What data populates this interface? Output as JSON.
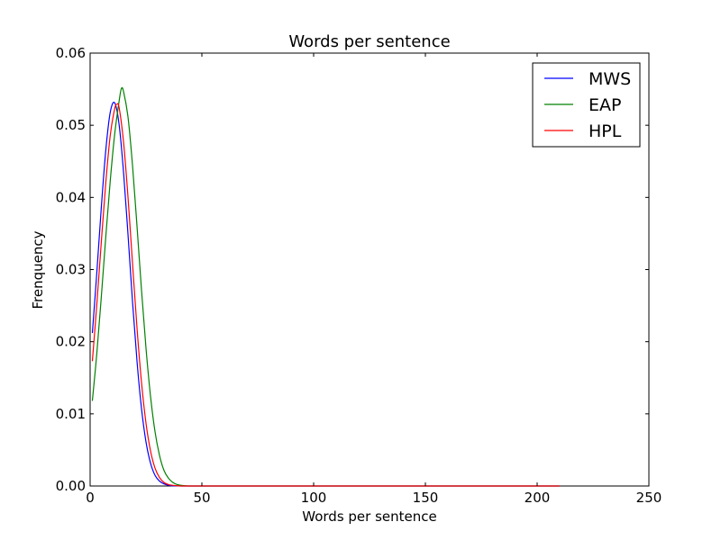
{
  "chart_data": {
    "type": "line",
    "title": "Words per sentence",
    "xlabel": "Words per sentence",
    "ylabel": "Frenquency",
    "xlim": [
      0,
      250
    ],
    "ylim": [
      0,
      0.06
    ],
    "xticks": [
      0,
      50,
      100,
      150,
      200,
      250
    ],
    "xtick_labels": [
      "0",
      "50",
      "100",
      "150",
      "200",
      "250"
    ],
    "yticks": [
      0,
      0.01,
      0.02,
      0.03,
      0.04,
      0.05,
      0.06
    ],
    "ytick_labels": [
      "0.00",
      "0.01",
      "0.02",
      "0.03",
      "0.04",
      "0.05",
      "0.06"
    ],
    "grid": false,
    "legend_position": "top-right",
    "series": [
      {
        "name": "MWS",
        "color": "#0000ff",
        "x": [
          1,
          3,
          5,
          7,
          9,
          11,
          13,
          15,
          17,
          19,
          21,
          23,
          25,
          27,
          29,
          31,
          33,
          35,
          37,
          39,
          42,
          45,
          50,
          60,
          80,
          100,
          150,
          210
        ],
        "y": [
          0.0212,
          0.0296,
          0.0386,
          0.0465,
          0.0518,
          0.0531,
          0.05,
          0.0433,
          0.0346,
          0.0254,
          0.0172,
          0.0107,
          0.0061,
          0.0032,
          0.0015,
          0.0007,
          0.0003,
          0.0001,
          3e-05,
          1e-05,
          0,
          0,
          0,
          0,
          0,
          0,
          0,
          0
        ]
      },
      {
        "name": "EAP",
        "color": "#008000",
        "x": [
          1,
          3,
          5,
          7,
          9,
          11,
          13,
          14,
          15,
          17,
          19,
          21,
          23,
          25,
          27,
          29,
          31,
          33,
          35,
          37,
          39,
          42,
          45,
          50,
          60,
          80,
          100,
          150,
          210
        ],
        "y": [
          0.0118,
          0.0184,
          0.0262,
          0.0345,
          0.0423,
          0.0488,
          0.0534,
          0.0551,
          0.0546,
          0.051,
          0.0443,
          0.0359,
          0.0271,
          0.0191,
          0.0125,
          0.0076,
          0.0043,
          0.0022,
          0.0011,
          0.0005,
          0.0002,
          5e-05,
          0,
          0,
          0,
          0,
          0,
          0,
          0
        ]
      },
      {
        "name": "HPL",
        "color": "#ff0000",
        "x": [
          1,
          3,
          5,
          7,
          9,
          11,
          12,
          13,
          15,
          17,
          19,
          21,
          23,
          25,
          27,
          29,
          31,
          33,
          35,
          37,
          39,
          42,
          45,
          50,
          60,
          80,
          100,
          150,
          210
        ],
        "y": [
          0.0173,
          0.0252,
          0.0338,
          0.042,
          0.0486,
          0.0523,
          0.0529,
          0.0524,
          0.0475,
          0.0398,
          0.0307,
          0.0218,
          0.0143,
          0.0087,
          0.0049,
          0.0025,
          0.0012,
          0.0005,
          0.0002,
          0.0001,
          3e-05,
          0,
          0,
          0,
          0,
          0,
          0,
          0,
          0
        ]
      }
    ]
  }
}
